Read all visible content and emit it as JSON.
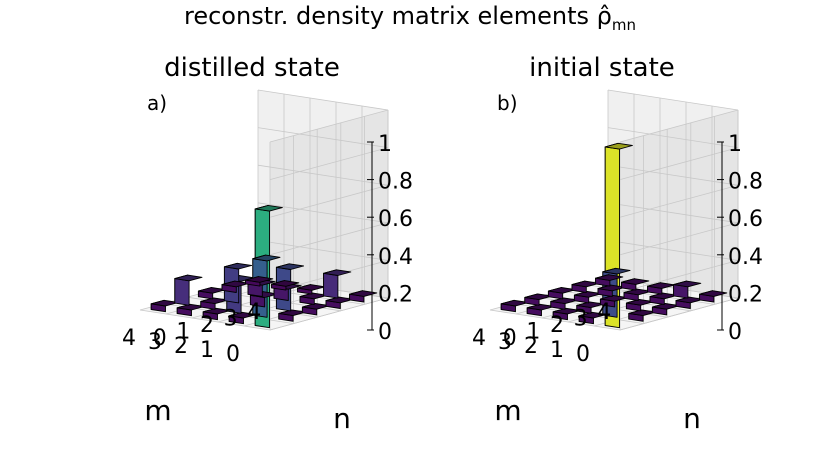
{
  "figure_title": "reconstr. density matrix elements ρ̂",
  "figure_title_sub": "mn",
  "chart_data": [
    {
      "type": "bar3d",
      "panel_label": "a)",
      "title": "distilled state",
      "xlabel": "m",
      "ylabel": "n",
      "x_ticks": [
        "0",
        "1",
        "2",
        "3",
        "4"
      ],
      "y_ticks": [
        "0",
        "1",
        "2",
        "3",
        "4"
      ],
      "z_ticks": [
        "0",
        "0.2",
        "0.4",
        "0.6",
        "0.8",
        "1"
      ],
      "zlim": [
        0,
        1
      ],
      "colormap": "viridis",
      "matrix": [
        [
          0.62,
          0.03,
          0.03,
          0.03,
          0.03
        ],
        [
          0.03,
          0.3,
          0.22,
          0.03,
          0.12
        ],
        [
          0.03,
          0.17,
          0.05,
          0.06,
          0.02
        ],
        [
          0.03,
          0.03,
          0.18,
          0.06,
          0.02
        ],
        [
          0.03,
          0.13,
          0.03,
          0.03,
          0.02
        ]
      ]
    },
    {
      "type": "bar3d",
      "panel_label": "b)",
      "title": "initial state",
      "xlabel": "m",
      "ylabel": "n",
      "x_ticks": [
        "0",
        "1",
        "2",
        "3",
        "4"
      ],
      "y_ticks": [
        "0",
        "1",
        "2",
        "3",
        "4"
      ],
      "z_ticks": [
        "0",
        "0.2",
        "0.4",
        "0.6",
        "0.8",
        "1"
      ],
      "zlim": [
        0,
        1
      ],
      "colormap": "viridis",
      "matrix": [
        [
          0.95,
          0.03,
          0.03,
          0.03,
          0.03
        ],
        [
          0.03,
          0.23,
          0.03,
          0.03,
          0.06
        ],
        [
          0.03,
          0.03,
          0.03,
          0.03,
          0.03
        ],
        [
          0.03,
          0.03,
          0.03,
          0.03,
          0.03
        ],
        [
          0.03,
          0.03,
          0.03,
          0.03,
          0.03
        ]
      ]
    }
  ]
}
